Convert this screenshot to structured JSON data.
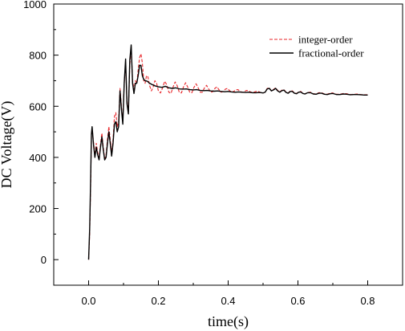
{
  "chart_data": {
    "type": "line",
    "xlabel": "time(s)",
    "ylabel": "DC Voltage(V)",
    "xlim": [
      -0.1,
      0.9
    ],
    "ylim": [
      -100,
      1000
    ],
    "x_ticks": [
      0.0,
      0.2,
      0.4,
      0.6,
      0.8
    ],
    "x_tick_labels": [
      "0.0",
      "0.2",
      "0.4",
      "0.6",
      "0.8"
    ],
    "y_ticks": [
      0,
      200,
      400,
      600,
      800,
      1000
    ],
    "y_tick_labels": [
      "0",
      "200",
      "400",
      "600",
      "800",
      "1000"
    ],
    "grid": false,
    "legend_position": "top-right",
    "series": [
      {
        "name": "integer-order",
        "color": "#e8262a",
        "style": "dashed",
        "points": [
          [
            0.0,
            0
          ],
          [
            0.003,
            100
          ],
          [
            0.006,
            300
          ],
          [
            0.008,
            480
          ],
          [
            0.01,
            515
          ],
          [
            0.014,
            460
          ],
          [
            0.018,
            410
          ],
          [
            0.022,
            455
          ],
          [
            0.026,
            420
          ],
          [
            0.03,
            395
          ],
          [
            0.034,
            450
          ],
          [
            0.038,
            495
          ],
          [
            0.042,
            440
          ],
          [
            0.046,
            395
          ],
          [
            0.05,
            410
          ],
          [
            0.054,
            470
          ],
          [
            0.058,
            520
          ],
          [
            0.062,
            470
          ],
          [
            0.066,
            415
          ],
          [
            0.07,
            470
          ],
          [
            0.074,
            560
          ],
          [
            0.078,
            575
          ],
          [
            0.082,
            520
          ],
          [
            0.086,
            540
          ],
          [
            0.09,
            670
          ],
          [
            0.094,
            600
          ],
          [
            0.098,
            540
          ],
          [
            0.102,
            690
          ],
          [
            0.106,
            760
          ],
          [
            0.11,
            620
          ],
          [
            0.114,
            580
          ],
          [
            0.118,
            760
          ],
          [
            0.122,
            830
          ],
          [
            0.126,
            700
          ],
          [
            0.13,
            665
          ],
          [
            0.134,
            700
          ],
          [
            0.138,
            690
          ],
          [
            0.142,
            740
          ],
          [
            0.146,
            790
          ],
          [
            0.15,
            805
          ],
          [
            0.154,
            770
          ],
          [
            0.158,
            700
          ],
          [
            0.162,
            690
          ],
          [
            0.166,
            720
          ],
          [
            0.17,
            715
          ],
          [
            0.175,
            680
          ],
          [
            0.18,
            660
          ],
          [
            0.185,
            675
          ],
          [
            0.19,
            700
          ],
          [
            0.195,
            690
          ],
          [
            0.2,
            660
          ],
          [
            0.206,
            652
          ],
          [
            0.212,
            672
          ],
          [
            0.218,
            698
          ],
          [
            0.224,
            684
          ],
          [
            0.23,
            655
          ],
          [
            0.236,
            650
          ],
          [
            0.242,
            675
          ],
          [
            0.248,
            695
          ],
          [
            0.254,
            680
          ],
          [
            0.26,
            654
          ],
          [
            0.266,
            652
          ],
          [
            0.272,
            676
          ],
          [
            0.278,
            692
          ],
          [
            0.284,
            675
          ],
          [
            0.29,
            654
          ],
          [
            0.296,
            653
          ],
          [
            0.302,
            674
          ],
          [
            0.308,
            688
          ],
          [
            0.314,
            672
          ],
          [
            0.32,
            655
          ],
          [
            0.326,
            655
          ],
          [
            0.332,
            672
          ],
          [
            0.338,
            682
          ],
          [
            0.344,
            668
          ],
          [
            0.35,
            655
          ],
          [
            0.356,
            657
          ],
          [
            0.362,
            670
          ],
          [
            0.368,
            676
          ],
          [
            0.374,
            664
          ],
          [
            0.38,
            655
          ],
          [
            0.386,
            658
          ],
          [
            0.392,
            667
          ],
          [
            0.398,
            670
          ],
          [
            0.404,
            661
          ],
          [
            0.41,
            655
          ],
          [
            0.416,
            658
          ],
          [
            0.422,
            664
          ],
          [
            0.428,
            665
          ],
          [
            0.434,
            659
          ],
          [
            0.44,
            654
          ],
          [
            0.446,
            657
          ],
          [
            0.452,
            662
          ],
          [
            0.458,
            661
          ],
          [
            0.464,
            656
          ],
          [
            0.47,
            653
          ],
          [
            0.476,
            656
          ],
          [
            0.482,
            659
          ],
          [
            0.488,
            657
          ],
          [
            0.494,
            653
          ],
          [
            0.5,
            652
          ],
          [
            0.506,
            655
          ],
          [
            0.512,
            670
          ],
          [
            0.518,
            672
          ],
          [
            0.524,
            660
          ],
          [
            0.53,
            666
          ],
          [
            0.536,
            672
          ],
          [
            0.542,
            662
          ],
          [
            0.548,
            656
          ],
          [
            0.554,
            663
          ],
          [
            0.56,
            665
          ],
          [
            0.566,
            655
          ],
          [
            0.572,
            652
          ],
          [
            0.578,
            660
          ],
          [
            0.584,
            660
          ],
          [
            0.59,
            652
          ],
          [
            0.596,
            650
          ],
          [
            0.602,
            656
          ],
          [
            0.608,
            658
          ],
          [
            0.614,
            651
          ],
          [
            0.62,
            648
          ],
          [
            0.628,
            654
          ],
          [
            0.636,
            655
          ],
          [
            0.644,
            649
          ],
          [
            0.652,
            648
          ],
          [
            0.66,
            653
          ],
          [
            0.668,
            653
          ],
          [
            0.676,
            648
          ],
          [
            0.684,
            647
          ],
          [
            0.692,
            651
          ],
          [
            0.7,
            652
          ],
          [
            0.71,
            647
          ],
          [
            0.72,
            647
          ],
          [
            0.73,
            650
          ],
          [
            0.74,
            649
          ],
          [
            0.75,
            646
          ],
          [
            0.76,
            647
          ],
          [
            0.77,
            648
          ],
          [
            0.78,
            646
          ],
          [
            0.79,
            645
          ],
          [
            0.8,
            645
          ]
        ]
      },
      {
        "name": "fractional-order",
        "color": "#000000",
        "style": "solid",
        "points": [
          [
            0.0,
            0
          ],
          [
            0.003,
            120
          ],
          [
            0.006,
            330
          ],
          [
            0.008,
            490
          ],
          [
            0.01,
            520
          ],
          [
            0.014,
            450
          ],
          [
            0.018,
            400
          ],
          [
            0.022,
            440
          ],
          [
            0.026,
            410
          ],
          [
            0.03,
            390
          ],
          [
            0.034,
            440
          ],
          [
            0.038,
            480
          ],
          [
            0.042,
            430
          ],
          [
            0.046,
            390
          ],
          [
            0.05,
            400
          ],
          [
            0.054,
            455
          ],
          [
            0.058,
            500
          ],
          [
            0.062,
            455
          ],
          [
            0.066,
            405
          ],
          [
            0.07,
            455
          ],
          [
            0.074,
            530
          ],
          [
            0.078,
            540
          ],
          [
            0.082,
            500
          ],
          [
            0.086,
            520
          ],
          [
            0.09,
            660
          ],
          [
            0.094,
            590
          ],
          [
            0.098,
            530
          ],
          [
            0.102,
            690
          ],
          [
            0.106,
            785
          ],
          [
            0.11,
            610
          ],
          [
            0.114,
            570
          ],
          [
            0.118,
            780
          ],
          [
            0.122,
            840
          ],
          [
            0.126,
            690
          ],
          [
            0.13,
            650
          ],
          [
            0.134,
            690
          ],
          [
            0.138,
            690
          ],
          [
            0.142,
            720
          ],
          [
            0.146,
            760
          ],
          [
            0.15,
            760
          ],
          [
            0.154,
            720
          ],
          [
            0.158,
            705
          ],
          [
            0.162,
            700
          ],
          [
            0.168,
            698
          ],
          [
            0.175,
            690
          ],
          [
            0.182,
            685
          ],
          [
            0.19,
            680
          ],
          [
            0.2,
            676
          ],
          [
            0.21,
            674
          ],
          [
            0.22,
            678
          ],
          [
            0.23,
            672
          ],
          [
            0.24,
            670
          ],
          [
            0.25,
            672
          ],
          [
            0.26,
            668
          ],
          [
            0.27,
            667
          ],
          [
            0.28,
            668
          ],
          [
            0.29,
            665
          ],
          [
            0.3,
            664
          ],
          [
            0.31,
            665
          ],
          [
            0.32,
            662
          ],
          [
            0.33,
            661
          ],
          [
            0.34,
            662
          ],
          [
            0.35,
            660
          ],
          [
            0.36,
            659
          ],
          [
            0.37,
            660
          ],
          [
            0.38,
            658
          ],
          [
            0.39,
            657
          ],
          [
            0.4,
            658
          ],
          [
            0.41,
            656
          ],
          [
            0.42,
            655
          ],
          [
            0.43,
            656
          ],
          [
            0.44,
            655
          ],
          [
            0.45,
            654
          ],
          [
            0.46,
            655
          ],
          [
            0.47,
            653
          ],
          [
            0.48,
            653
          ],
          [
            0.49,
            654
          ],
          [
            0.5,
            652
          ],
          [
            0.506,
            655
          ],
          [
            0.512,
            668
          ],
          [
            0.518,
            670
          ],
          [
            0.524,
            660
          ],
          [
            0.53,
            664
          ],
          [
            0.536,
            670
          ],
          [
            0.542,
            660
          ],
          [
            0.548,
            655
          ],
          [
            0.554,
            661
          ],
          [
            0.56,
            663
          ],
          [
            0.566,
            654
          ],
          [
            0.572,
            651
          ],
          [
            0.578,
            658
          ],
          [
            0.584,
            658
          ],
          [
            0.59,
            651
          ],
          [
            0.596,
            649
          ],
          [
            0.602,
            655
          ],
          [
            0.608,
            656
          ],
          [
            0.614,
            650
          ],
          [
            0.62,
            648
          ],
          [
            0.628,
            653
          ],
          [
            0.636,
            653
          ],
          [
            0.644,
            648
          ],
          [
            0.652,
            647
          ],
          [
            0.66,
            651
          ],
          [
            0.668,
            651
          ],
          [
            0.676,
            647
          ],
          [
            0.684,
            646
          ],
          [
            0.692,
            649
          ],
          [
            0.7,
            650
          ],
          [
            0.71,
            646
          ],
          [
            0.72,
            646
          ],
          [
            0.73,
            648
          ],
          [
            0.74,
            647
          ],
          [
            0.75,
            645
          ],
          [
            0.76,
            646
          ],
          [
            0.77,
            646
          ],
          [
            0.78,
            645
          ],
          [
            0.79,
            644
          ],
          [
            0.8,
            644
          ]
        ]
      }
    ]
  }
}
